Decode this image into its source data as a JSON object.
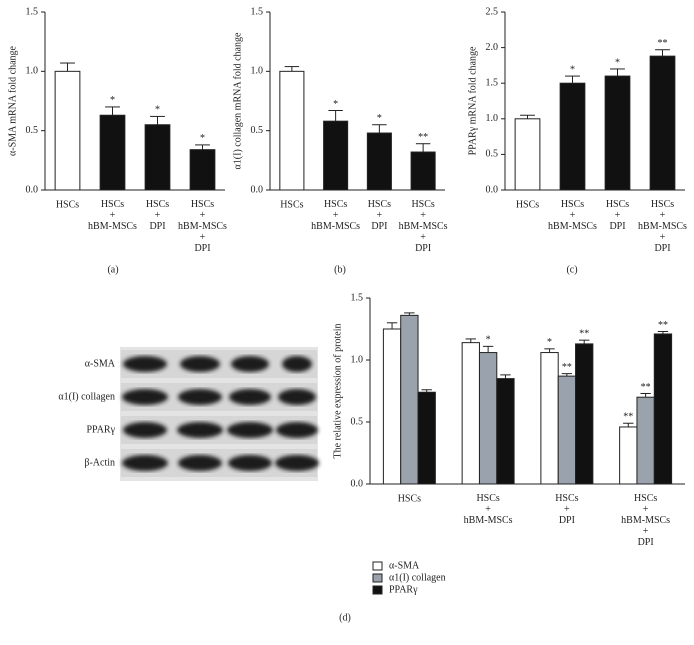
{
  "chart_data": [
    {
      "type": "bar",
      "label": "(a)",
      "ylabel": "α-SMA mRNA fold change",
      "categories": [
        "HSCs",
        "HSCs\n+\nhBM-MSCs",
        "HSCs\n+\nDPI",
        "HSCs\n+\nhBM-MSCs\n+\nDPI"
      ],
      "values": [
        1.0,
        0.63,
        0.55,
        0.34
      ],
      "errors": [
        0.07,
        0.07,
        0.07,
        0.04
      ],
      "stars": [
        null,
        "*",
        "*",
        "*"
      ],
      "colors": [
        "#ffffff",
        "#111111",
        "#111111",
        "#111111"
      ],
      "ylim": [
        0,
        1.5
      ],
      "yticks": [
        {
          "value": 0,
          "label": "0.0"
        },
        {
          "value": 0.5,
          "label": "0.5"
        },
        {
          "value": 1,
          "label": "1.0"
        },
        {
          "value": 1.5,
          "label": "1.5"
        }
      ]
    },
    {
      "type": "bar",
      "label": "(b)",
      "ylabel": "α1(I) collagen mRNA fold change",
      "categories": [
        "HSCs",
        "HSCs\n+\nhBM-MSCs",
        "HSCs\n+\nDPI",
        "HSCs\n+\nhBM-MSCs\n+\nDPI"
      ],
      "values": [
        1.0,
        0.58,
        0.48,
        0.32
      ],
      "errors": [
        0.04,
        0.09,
        0.07,
        0.07
      ],
      "stars": [
        null,
        "*",
        "*",
        "**"
      ],
      "colors": [
        "#ffffff",
        "#111111",
        "#111111",
        "#111111"
      ],
      "ylim": [
        0,
        1.5
      ],
      "yticks": [
        {
          "value": 0,
          "label": "0.0"
        },
        {
          "value": 0.5,
          "label": "0.5"
        },
        {
          "value": 1,
          "label": "1.0"
        },
        {
          "value": 1.5,
          "label": "1.5"
        }
      ]
    },
    {
      "type": "bar",
      "label": "(c)",
      "ylabel": "PPARγ mRNA fold change",
      "categories": [
        "HSCs",
        "HSCs\n+\nhBM-MSCs",
        "HSCs\n+\nDPI",
        "HSCs\n+\nhBM-MSCs\n+\nDPI"
      ],
      "values": [
        1.0,
        1.5,
        1.6,
        1.88
      ],
      "errors": [
        0.05,
        0.1,
        0.1,
        0.09
      ],
      "stars": [
        null,
        "*",
        "*",
        "**"
      ],
      "colors": [
        "#ffffff",
        "#111111",
        "#111111",
        "#111111"
      ],
      "ylim": [
        0,
        2.5
      ],
      "yticks": [
        {
          "value": 0,
          "label": "0.0"
        },
        {
          "value": 0.5,
          "label": "0.5"
        },
        {
          "value": 1,
          "label": "1.0"
        },
        {
          "value": 1.5,
          "label": "1.5"
        },
        {
          "value": 2,
          "label": "2.0"
        },
        {
          "value": 2.5,
          "label": "2.5"
        }
      ]
    },
    {
      "type": "grouped-bar",
      "label": "(d)",
      "ylabel": "The relative expression of protein",
      "categories": [
        "HSCs",
        "HSCs\n+\nhBM-MSCs",
        "HSCs\n+\nDPI",
        "HSCs\n+\nhBM-MSCs\n+\nDPI"
      ],
      "series": [
        {
          "name": "α-SMA",
          "color": "#ffffff",
          "values": [
            1.25,
            1.14,
            1.06,
            0.46
          ],
          "errors": [
            0.05,
            0.03,
            0.03,
            0.03
          ],
          "stars": [
            null,
            null,
            "*",
            "**"
          ]
        },
        {
          "name": "α1(I) collagen",
          "color": "#9aa3ad",
          "values": [
            1.36,
            1.06,
            0.87,
            0.7
          ],
          "errors": [
            0.02,
            0.05,
            0.02,
            0.03
          ],
          "stars": [
            null,
            "*",
            "**",
            "**"
          ]
        },
        {
          "name": "PPARγ",
          "color": "#111111",
          "values": [
            0.74,
            0.85,
            1.13,
            1.21
          ],
          "errors": [
            0.02,
            0.03,
            0.03,
            0.02
          ],
          "stars": [
            null,
            null,
            "**",
            "**"
          ]
        }
      ],
      "ylim": [
        0,
        1.5
      ],
      "yticks": [
        {
          "value": 0,
          "label": "0.0"
        },
        {
          "value": 0.5,
          "label": "0.5"
        },
        {
          "value": 1,
          "label": "1.0"
        },
        {
          "value": 1.5,
          "label": "1.5"
        }
      ]
    }
  ],
  "blot": {
    "rows": [
      "α-SMA",
      "α1(I) collagen",
      "PPARγ",
      "β-Actin"
    ]
  }
}
